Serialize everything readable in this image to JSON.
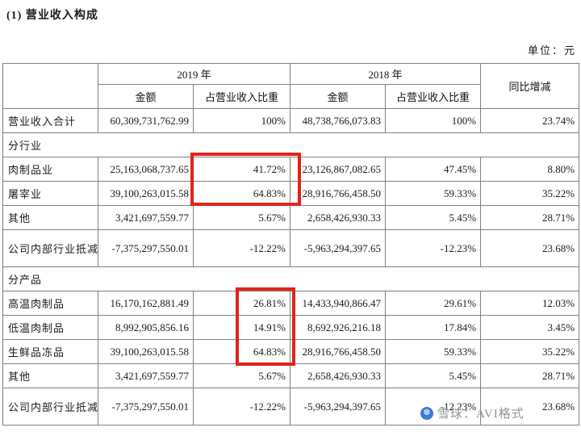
{
  "page": {
    "title": "(1) 营业收入构成",
    "unit_label": "单位：元"
  },
  "table": {
    "col_groups": [
      {
        "label": "2019 年"
      },
      {
        "label": "2018 年"
      },
      {
        "label": "同比增减"
      }
    ],
    "sub_headers": [
      "金额",
      "占营业收入比重",
      "金额",
      "占营业收入比重"
    ],
    "rows": [
      {
        "type": "data",
        "label": "营业收入合计",
        "cells": [
          "60,309,731,762.99",
          "100%",
          "48,738,766,073.83",
          "100%",
          "23.74%"
        ]
      },
      {
        "type": "section",
        "label": "分行业"
      },
      {
        "type": "data",
        "label": "肉制品业",
        "cells": [
          "25,163,068,737.65",
          "41.72%",
          "23,126,867,082.65",
          "47.45%",
          "8.80%"
        ]
      },
      {
        "type": "data",
        "label": "屠宰业",
        "cells": [
          "39,100,263,015.58",
          "64.83%",
          "28,916,766,458.50",
          "59.33%",
          "35.22%"
        ]
      },
      {
        "type": "data",
        "label": "其他",
        "cells": [
          "3,421,697,559.77",
          "5.67%",
          "2,658,426,930.33",
          "5.45%",
          "28.71%"
        ]
      },
      {
        "type": "data",
        "label": "公司内部行业抵减",
        "tall": true,
        "cells": [
          "-7,375,297,550.01",
          "-12.22%",
          "-5,963,294,397.65",
          "-12.23%",
          "23.68%"
        ]
      },
      {
        "type": "section",
        "label": "分产品"
      },
      {
        "type": "data",
        "label": "高温肉制品",
        "cells": [
          "16,170,162,881.49",
          "26.81%",
          "14,433,940,866.47",
          "29.61%",
          "12.03%"
        ]
      },
      {
        "type": "data",
        "label": "低温肉制品",
        "cells": [
          "8,992,905,856.16",
          "14.91%",
          "8,692,926,216.18",
          "17.84%",
          "3.45%"
        ]
      },
      {
        "type": "data",
        "label": "生鲜品冻品",
        "cells": [
          "39,100,263,015.58",
          "64.83%",
          "28,916,766,458.50",
          "59.33%",
          "35.22%"
        ]
      },
      {
        "type": "data",
        "label": "其他",
        "cells": [
          "3,421,697,559.77",
          "5.67%",
          "2,658,426,930.33",
          "5.45%",
          "28.71%"
        ]
      },
      {
        "type": "data",
        "label": "公司内部行业抵减",
        "tall": true,
        "cells": [
          "-7,375,297,550.01",
          "-12.22%",
          "-5,963,294,397.65",
          "-12.23%",
          "23.68%"
        ]
      }
    ]
  },
  "annotations": {
    "highlight_color": "#e2231a",
    "boxes": [
      "industry-2019-ratio-highlight",
      "product-2019-ratio-highlight"
    ]
  },
  "watermark": {
    "text": "雪球：AVI格式",
    "logo_glyph": "❆",
    "logo_color": "#3a7bd5",
    "text_color": "#8d939b"
  }
}
